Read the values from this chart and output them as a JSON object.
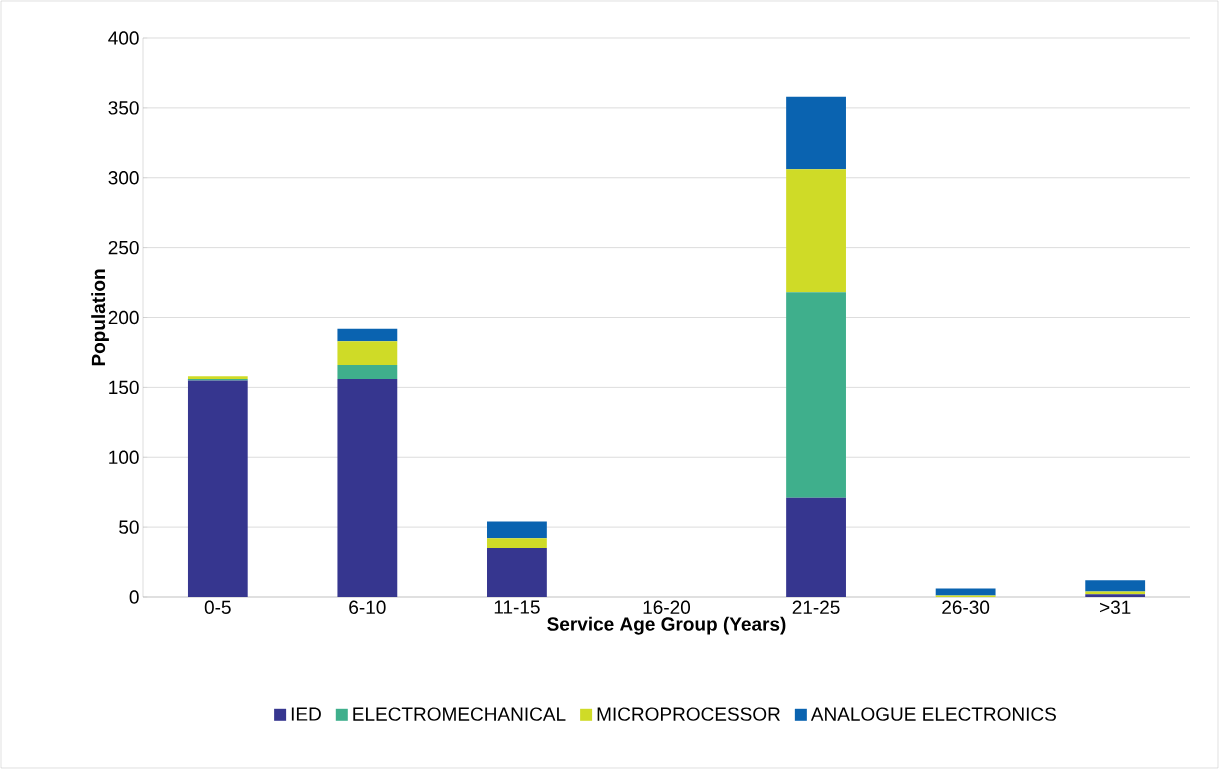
{
  "chart_data": {
    "type": "bar",
    "stacked": true,
    "xlabel": "Service Age Group (Years)",
    "ylabel": "Population",
    "categories": [
      "0-5",
      "6-10",
      "11-15",
      "16-20",
      "21-25",
      "26-30",
      ">31"
    ],
    "series": [
      {
        "name": "IED",
        "color": "#36368f",
        "values": [
          155,
          156,
          35,
          0,
          71,
          0,
          2
        ]
      },
      {
        "name": "ELECTROMECHANICAL",
        "color": "#3faf8c",
        "values": [
          1,
          10,
          0,
          0,
          147,
          0,
          0
        ]
      },
      {
        "name": "MICROPROCESSOR",
        "color": "#cfdb27",
        "values": [
          2,
          17,
          7,
          0,
          88,
          1,
          2
        ]
      },
      {
        "name": "ANALOGUE ELECTRONICS",
        "color": "#0a63b0",
        "values": [
          0,
          9,
          12,
          0,
          52,
          5,
          8
        ]
      }
    ],
    "ylim": [
      0,
      400
    ],
    "yticks": [
      0,
      50,
      100,
      150,
      200,
      250,
      300,
      350,
      400
    ],
    "grid": "y",
    "legend": "bottom"
  }
}
